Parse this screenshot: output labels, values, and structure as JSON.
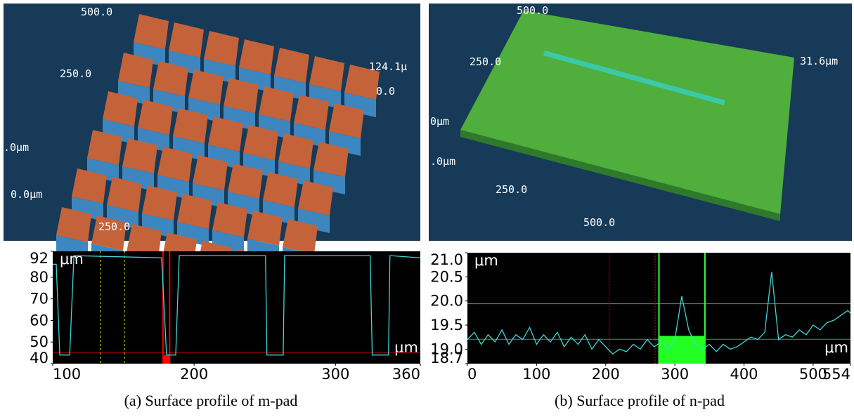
{
  "renders": [
    {
      "labels": [
        "500.0",
        "250.0",
        "124.1μ",
        "0.0",
        ".0μm",
        "0.0μm",
        "250.0"
      ]
    },
    {
      "labels": [
        "500.0",
        "250.0",
        "31.6μm",
        "0μm",
        ".0μm",
        "250.0",
        "500.0"
      ]
    }
  ],
  "chart_data": [
    {
      "type": "line",
      "y_label": "μm",
      "x_label": "μm",
      "x": [
        100,
        102.5,
        105,
        112,
        115,
        177,
        180.5,
        187,
        189.5,
        250.5,
        251.5,
        263,
        264,
        324.5,
        326,
        337.5,
        338.5,
        360
      ],
      "series": [
        {
          "color": "#3fd6d6",
          "values": [
            86,
            86,
            44,
            44,
            90,
            89,
            44,
            44,
            90,
            90,
            44,
            44,
            90,
            90,
            44,
            44,
            90,
            89
          ]
        }
      ],
      "xlim": [
        100,
        360
      ],
      "xticks": [
        100,
        200,
        300,
        360
      ],
      "ylim": [
        40,
        92
      ],
      "yticks": [
        40,
        50,
        60,
        70,
        80,
        92
      ]
    },
    {
      "type": "line",
      "y_label": "μm",
      "x_label": "μm",
      "x": [
        0,
        10,
        20,
        30,
        40,
        50,
        60,
        70,
        80,
        90,
        100,
        110,
        120,
        130,
        140,
        150,
        160,
        170,
        180,
        190,
        200,
        210,
        220,
        230,
        240,
        250,
        260,
        270,
        280,
        290,
        300,
        310,
        320,
        330,
        340,
        350,
        360,
        370,
        380,
        390,
        400,
        410,
        420,
        430,
        440,
        450,
        460,
        470,
        480,
        490,
        500,
        510,
        520,
        530,
        540,
        550,
        554
      ],
      "series": [
        {
          "color": "#3fd6d6",
          "values": [
            19.2,
            19.35,
            19.1,
            19.3,
            19.15,
            19.4,
            19.1,
            19.3,
            19.2,
            19.45,
            19.1,
            19.3,
            19.15,
            19.35,
            19.05,
            19.25,
            19.1,
            19.3,
            19.0,
            19.2,
            19.05,
            18.9,
            19.0,
            18.95,
            19.1,
            19.0,
            19.2,
            19.05,
            19.15,
            19.0,
            19.2,
            20.1,
            19.4,
            19.1,
            19.0,
            19.1,
            18.95,
            19.1,
            19.0,
            19.05,
            19.15,
            19.25,
            19.2,
            19.35,
            20.6,
            19.2,
            19.3,
            19.25,
            19.4,
            19.3,
            19.5,
            19.4,
            19.55,
            19.6,
            19.7,
            19.8,
            19.75
          ]
        }
      ],
      "xlim": [
        0,
        554
      ],
      "xticks": [
        0,
        100,
        200,
        300,
        400,
        500,
        554
      ],
      "ylim": [
        18.7,
        21.0
      ],
      "yticks": [
        18.7,
        {
          "value": 19,
          "label": "19.0"
        },
        19.5,
        {
          "value": 20,
          "label": "20.0"
        },
        20.5,
        {
          "value": 21,
          "label": "21.0"
        }
      ]
    }
  ],
  "captions": [
    "(a) Surface profile of m-pad",
    "(b) Surface profile of n-pad"
  ]
}
